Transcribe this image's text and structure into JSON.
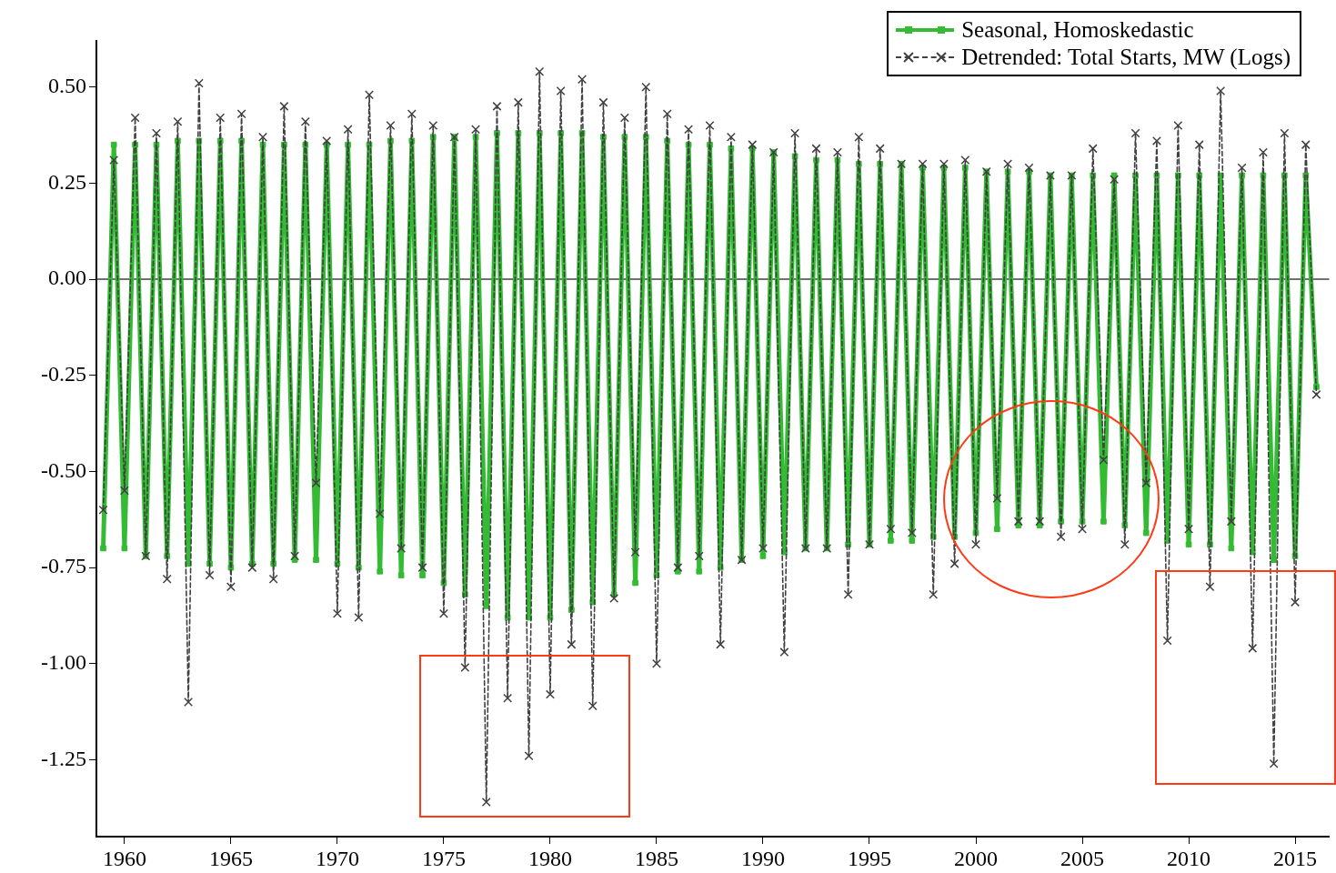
{
  "chart_data": {
    "type": "line",
    "legend": "top right",
    "grid": false,
    "x": [
      1959,
      1959.5,
      1960,
      1960.5,
      1961,
      1961.5,
      1962,
      1962.5,
      1963,
      1963.5,
      1964,
      1964.5,
      1965,
      1965.5,
      1966,
      1966.5,
      1967,
      1967.5,
      1968,
      1968.5,
      1969,
      1969.5,
      1970,
      1970.5,
      1971,
      1971.5,
      1972,
      1972.5,
      1973,
      1973.5,
      1974,
      1974.5,
      1975,
      1975.5,
      1976,
      1976.5,
      1977,
      1977.5,
      1978,
      1978.5,
      1979,
      1979.5,
      1980,
      1980.5,
      1981,
      1981.5,
      1982,
      1982.5,
      1983,
      1983.5,
      1984,
      1984.5,
      1985,
      1985.5,
      1986,
      1986.5,
      1987,
      1987.5,
      1988,
      1988.5,
      1989,
      1989.5,
      1990,
      1990.5,
      1991,
      1991.5,
      1992,
      1992.5,
      1993,
      1993.5,
      1994,
      1994.5,
      1995,
      1995.5,
      1996,
      1996.5,
      1997,
      1997.5,
      1998,
      1998.5,
      1999,
      1999.5,
      2000,
      2000.5,
      2001,
      2001.5,
      2002,
      2002.5,
      2003,
      2003.5,
      2004,
      2004.5,
      2005,
      2005.5,
      2006,
      2006.5,
      2007,
      2007.5,
      2008,
      2008.5,
      2009,
      2009.5,
      2010,
      2010.5,
      2011,
      2011.5,
      2012,
      2012.5,
      2013,
      2013.5,
      2014,
      2014.5,
      2015,
      2015.5,
      2016
    ],
    "series": [
      {
        "name": "Seasonal, Homoskedastic",
        "color": "#33bb33",
        "marker": "square",
        "line_style": "solid",
        "values": [
          -0.7,
          0.35,
          -0.7,
          0.35,
          -0.72,
          0.35,
          -0.72,
          0.36,
          -0.74,
          0.36,
          -0.74,
          0.36,
          -0.75,
          0.36,
          -0.74,
          0.35,
          -0.74,
          0.35,
          -0.73,
          0.35,
          -0.73,
          0.35,
          -0.74,
          0.35,
          -0.75,
          0.35,
          -0.76,
          0.36,
          -0.77,
          0.36,
          -0.77,
          0.37,
          -0.79,
          0.37,
          -0.82,
          0.37,
          -0.85,
          0.38,
          -0.88,
          0.38,
          -0.88,
          0.38,
          -0.88,
          0.38,
          -0.86,
          0.38,
          -0.84,
          0.37,
          -0.82,
          0.37,
          -0.79,
          0.37,
          -0.77,
          0.36,
          -0.76,
          0.35,
          -0.76,
          0.35,
          -0.75,
          0.34,
          -0.73,
          0.34,
          -0.72,
          0.33,
          -0.71,
          0.32,
          -0.7,
          0.31,
          -0.7,
          0.31,
          -0.69,
          0.3,
          -0.69,
          0.3,
          -0.68,
          0.3,
          -0.68,
          0.29,
          -0.67,
          0.29,
          -0.67,
          0.29,
          -0.66,
          0.28,
          -0.65,
          0.28,
          -0.64,
          0.28,
          -0.64,
          0.27,
          -0.63,
          0.27,
          -0.63,
          0.27,
          -0.63,
          0.27,
          -0.64,
          0.27,
          -0.66,
          0.27,
          -0.68,
          0.27,
          -0.69,
          0.27,
          -0.69,
          0.27,
          -0.7,
          0.27,
          -0.71,
          0.27,
          -0.73,
          0.27,
          -0.72,
          0.27,
          -0.28
        ]
      },
      {
        "name": "Detrended: Total Starts, MW (Logs)",
        "color": "#404040",
        "marker": "cross",
        "line_style": "dashed",
        "values": [
          -0.6,
          0.31,
          -0.55,
          0.42,
          -0.72,
          0.38,
          -0.78,
          0.41,
          -1.1,
          0.51,
          -0.77,
          0.42,
          -0.8,
          0.43,
          -0.75,
          0.37,
          -0.78,
          0.45,
          -0.72,
          0.41,
          -0.53,
          0.36,
          -0.87,
          0.39,
          -0.88,
          0.48,
          -0.61,
          0.4,
          -0.7,
          0.43,
          -0.75,
          0.4,
          -0.87,
          0.37,
          -1.01,
          0.39,
          -1.36,
          0.45,
          -1.09,
          0.46,
          -1.24,
          0.54,
          -1.08,
          0.49,
          -0.95,
          0.52,
          -1.11,
          0.46,
          -0.83,
          0.42,
          -0.71,
          0.5,
          -1.0,
          0.43,
          -0.75,
          0.39,
          -0.72,
          0.4,
          -0.95,
          0.37,
          -0.73,
          0.35,
          -0.7,
          0.33,
          -0.97,
          0.38,
          -0.7,
          0.34,
          -0.7,
          0.33,
          -0.82,
          0.37,
          -0.69,
          0.34,
          -0.65,
          0.3,
          -0.66,
          0.3,
          -0.82,
          0.3,
          -0.74,
          0.31,
          -0.69,
          0.28,
          -0.57,
          0.3,
          -0.63,
          0.29,
          -0.63,
          0.27,
          -0.67,
          0.27,
          -0.65,
          0.34,
          -0.47,
          0.26,
          -0.69,
          0.38,
          -0.53,
          0.36,
          -0.94,
          0.4,
          -0.65,
          0.35,
          -0.8,
          0.49,
          -0.63,
          0.29,
          -0.96,
          0.33,
          -1.26,
          0.38,
          -0.84,
          0.35,
          -0.3
        ]
      }
    ],
    "xlim": [
      1958.68,
      2016.6
    ],
    "xticks": [
      1960,
      1965,
      1970,
      1975,
      1980,
      1985,
      1990,
      1995,
      2000,
      2005,
      2010,
      2015
    ],
    "ylim": [
      -1.45,
      0.62
    ],
    "yticks": [
      {
        "value": -1.25,
        "label": "-1.25"
      },
      {
        "value": -1,
        "label": "-1.00"
      },
      {
        "value": -0.75,
        "label": "-0.75"
      },
      {
        "value": -0.5,
        "label": "-0.50"
      },
      {
        "value": -0.25,
        "label": "-0.25"
      },
      {
        "value": 0,
        "label": "0.00"
      },
      {
        "value": 0.25,
        "label": "0.25"
      },
      {
        "value": 0.5,
        "label": "0.50"
      }
    ],
    "ref_lines": [
      {
        "axis": "y",
        "value": 0,
        "label": null,
        "color": "#404040"
      }
    ]
  }
}
